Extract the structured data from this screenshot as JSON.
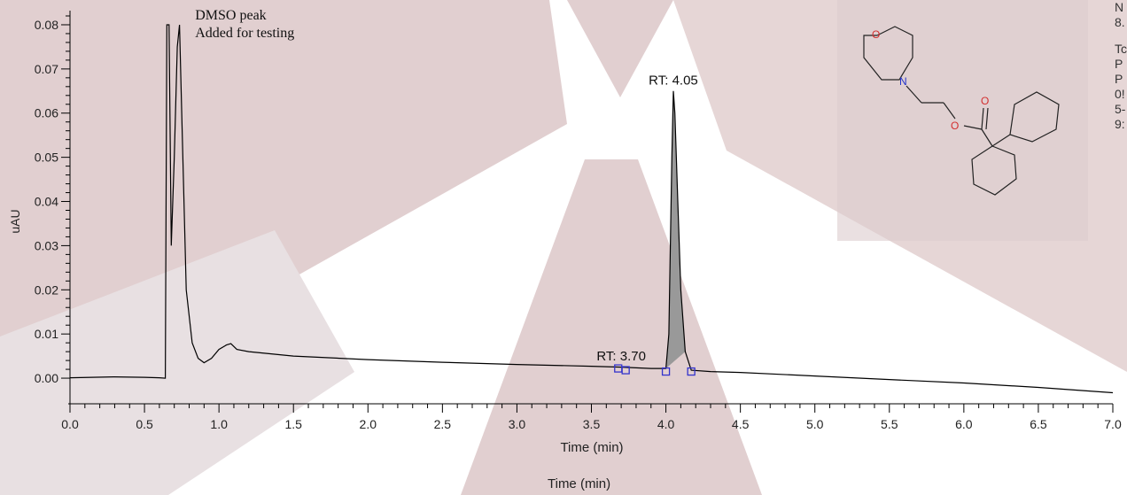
{
  "chart_data": {
    "type": "line",
    "xlabel": "Time (min)",
    "ylabel": "uAU",
    "xlim": [
      0,
      7
    ],
    "ylim": [
      -0.005,
      0.082
    ],
    "x_ticks": [
      "0.0",
      "0.5",
      "1.0",
      "1.5",
      "2.0",
      "2.5",
      "3.0",
      "3.5",
      "4.0",
      "4.5",
      "5.0",
      "5.5",
      "6.0",
      "6.5",
      "7.0"
    ],
    "y_ticks": [
      "0.00",
      "0.01",
      "0.02",
      "0.03",
      "0.04",
      "0.05",
      "0.06",
      "0.07",
      "0.08"
    ],
    "series": [
      {
        "points": [
          [
            0.0,
            0.0001
          ],
          [
            0.3,
            0.0003
          ],
          [
            0.5,
            0.0002
          ],
          [
            0.6,
            0.0001
          ],
          [
            0.64,
            0.0
          ],
          [
            0.65,
            0.08
          ],
          [
            0.665,
            0.08
          ],
          [
            0.68,
            0.03
          ],
          [
            0.7,
            0.05
          ],
          [
            0.72,
            0.075
          ],
          [
            0.735,
            0.08
          ],
          [
            0.75,
            0.06
          ],
          [
            0.78,
            0.02
          ],
          [
            0.82,
            0.008
          ],
          [
            0.86,
            0.0045
          ],
          [
            0.9,
            0.0035
          ],
          [
            0.95,
            0.0045
          ],
          [
            1.0,
            0.0065
          ],
          [
            1.05,
            0.0075
          ],
          [
            1.08,
            0.0078
          ],
          [
            1.12,
            0.0065
          ],
          [
            1.2,
            0.006
          ],
          [
            1.5,
            0.005
          ],
          [
            2.0,
            0.0042
          ],
          [
            2.5,
            0.0036
          ],
          [
            3.0,
            0.0031
          ],
          [
            3.5,
            0.0027
          ],
          [
            3.7,
            0.0025
          ],
          [
            3.9,
            0.0022
          ],
          [
            4.0,
            0.0022
          ],
          [
            4.02,
            0.01
          ],
          [
            4.04,
            0.05
          ],
          [
            4.05,
            0.065
          ],
          [
            4.06,
            0.06
          ],
          [
            4.08,
            0.04
          ],
          [
            4.1,
            0.02
          ],
          [
            4.13,
            0.006
          ],
          [
            4.17,
            0.0018
          ],
          [
            4.3,
            0.0015
          ],
          [
            4.5,
            0.0013
          ],
          [
            5.0,
            0.0005
          ],
          [
            5.5,
            -0.0003
          ],
          [
            6.0,
            -0.0011
          ],
          [
            6.5,
            -0.0021
          ],
          [
            7.0,
            -0.0033
          ]
        ]
      }
    ],
    "annotations": [
      {
        "text": "DMSO peak",
        "x": 0.84,
        "y": 0.0812
      },
      {
        "text": "Added for testing",
        "x": 0.84,
        "y": 0.0772
      },
      {
        "text": "RT: 4.05",
        "x": 4.05,
        "y": 0.0665
      },
      {
        "text": "RT: 3.70",
        "x": 3.7,
        "y": 0.004
      }
    ],
    "integration_markers": [
      [
        3.68,
        0.0022
      ],
      [
        3.73,
        0.0018
      ],
      [
        4.0,
        0.0015
      ],
      [
        4.17,
        0.0015
      ]
    ],
    "shaded_peak": {
      "x_start": 4.0,
      "x_end": 4.13
    },
    "grid": false,
    "colors": {
      "trace": "#000000",
      "markers": "#3333cc",
      "peak_fill": "#999999"
    }
  },
  "secondary_xlabel": "Time (min)",
  "side_texts": [
    "N",
    "8.",
    "Tc",
    "P",
    "P",
    "0!",
    "5-",
    "9:"
  ],
  "structure_atoms": [
    "O",
    "N",
    "O",
    "O"
  ]
}
